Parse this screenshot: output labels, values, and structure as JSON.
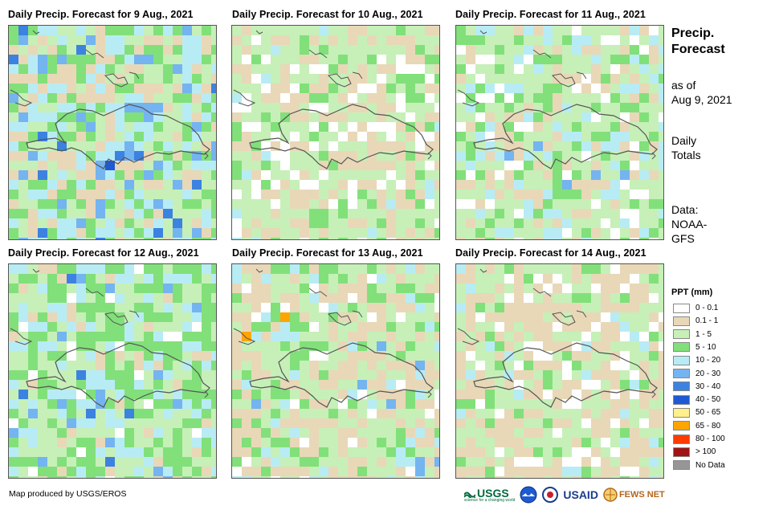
{
  "panels": [
    {
      "title": "Daily Precip. Forecast for 9 Aug., 2021"
    },
    {
      "title": "Daily Precip. Forecast for 10 Aug., 2021"
    },
    {
      "title": "Daily Precip. Forecast for 11 Aug., 2021"
    },
    {
      "title": "Daily Precip. Forecast for 12 Aug., 2021"
    },
    {
      "title": "Daily Precip. Forecast for 13 Aug., 2021"
    },
    {
      "title": "Daily Precip. Forecast for 14 Aug., 2021"
    }
  ],
  "sidebar": {
    "title_line1": "Precip.",
    "title_line2": "Forecast",
    "asof_line1": "as of",
    "asof_line2": "Aug 9, 2021",
    "totals_line1": "Daily",
    "totals_line2": "Totals",
    "data_line1": "Data:",
    "data_line2": "NOAA-",
    "data_line3": "GFS"
  },
  "legend": {
    "title": "PPT (mm)",
    "items": [
      {
        "label": "0 - 0.1",
        "color": "#ffffff"
      },
      {
        "label": "0.1 - 1",
        "color": "#e8d8b8"
      },
      {
        "label": "1 - 5",
        "color": "#c6f0b8"
      },
      {
        "label": "5 - 10",
        "color": "#82e07a"
      },
      {
        "label": "10 - 20",
        "color": "#b8ecf4"
      },
      {
        "label": "20 - 30",
        "color": "#74b4f0"
      },
      {
        "label": "30 - 40",
        "color": "#3c82e0"
      },
      {
        "label": "40 - 50",
        "color": "#1e5ad2"
      },
      {
        "label": "50 - 65",
        "color": "#fff08c"
      },
      {
        "label": "65 - 80",
        "color": "#ffa500"
      },
      {
        "label": "80 - 100",
        "color": "#ff3c00"
      },
      {
        "label": "> 100",
        "color": "#a01414"
      },
      {
        "label": "No Data",
        "color": "#969696"
      }
    ]
  },
  "credit": "Map produced by USGS/EROS",
  "logos": {
    "usgs": "USGS",
    "usgs_tag": "science for a changing world",
    "usaid": "USAID",
    "fewsnet": "FEWS NET"
  }
}
